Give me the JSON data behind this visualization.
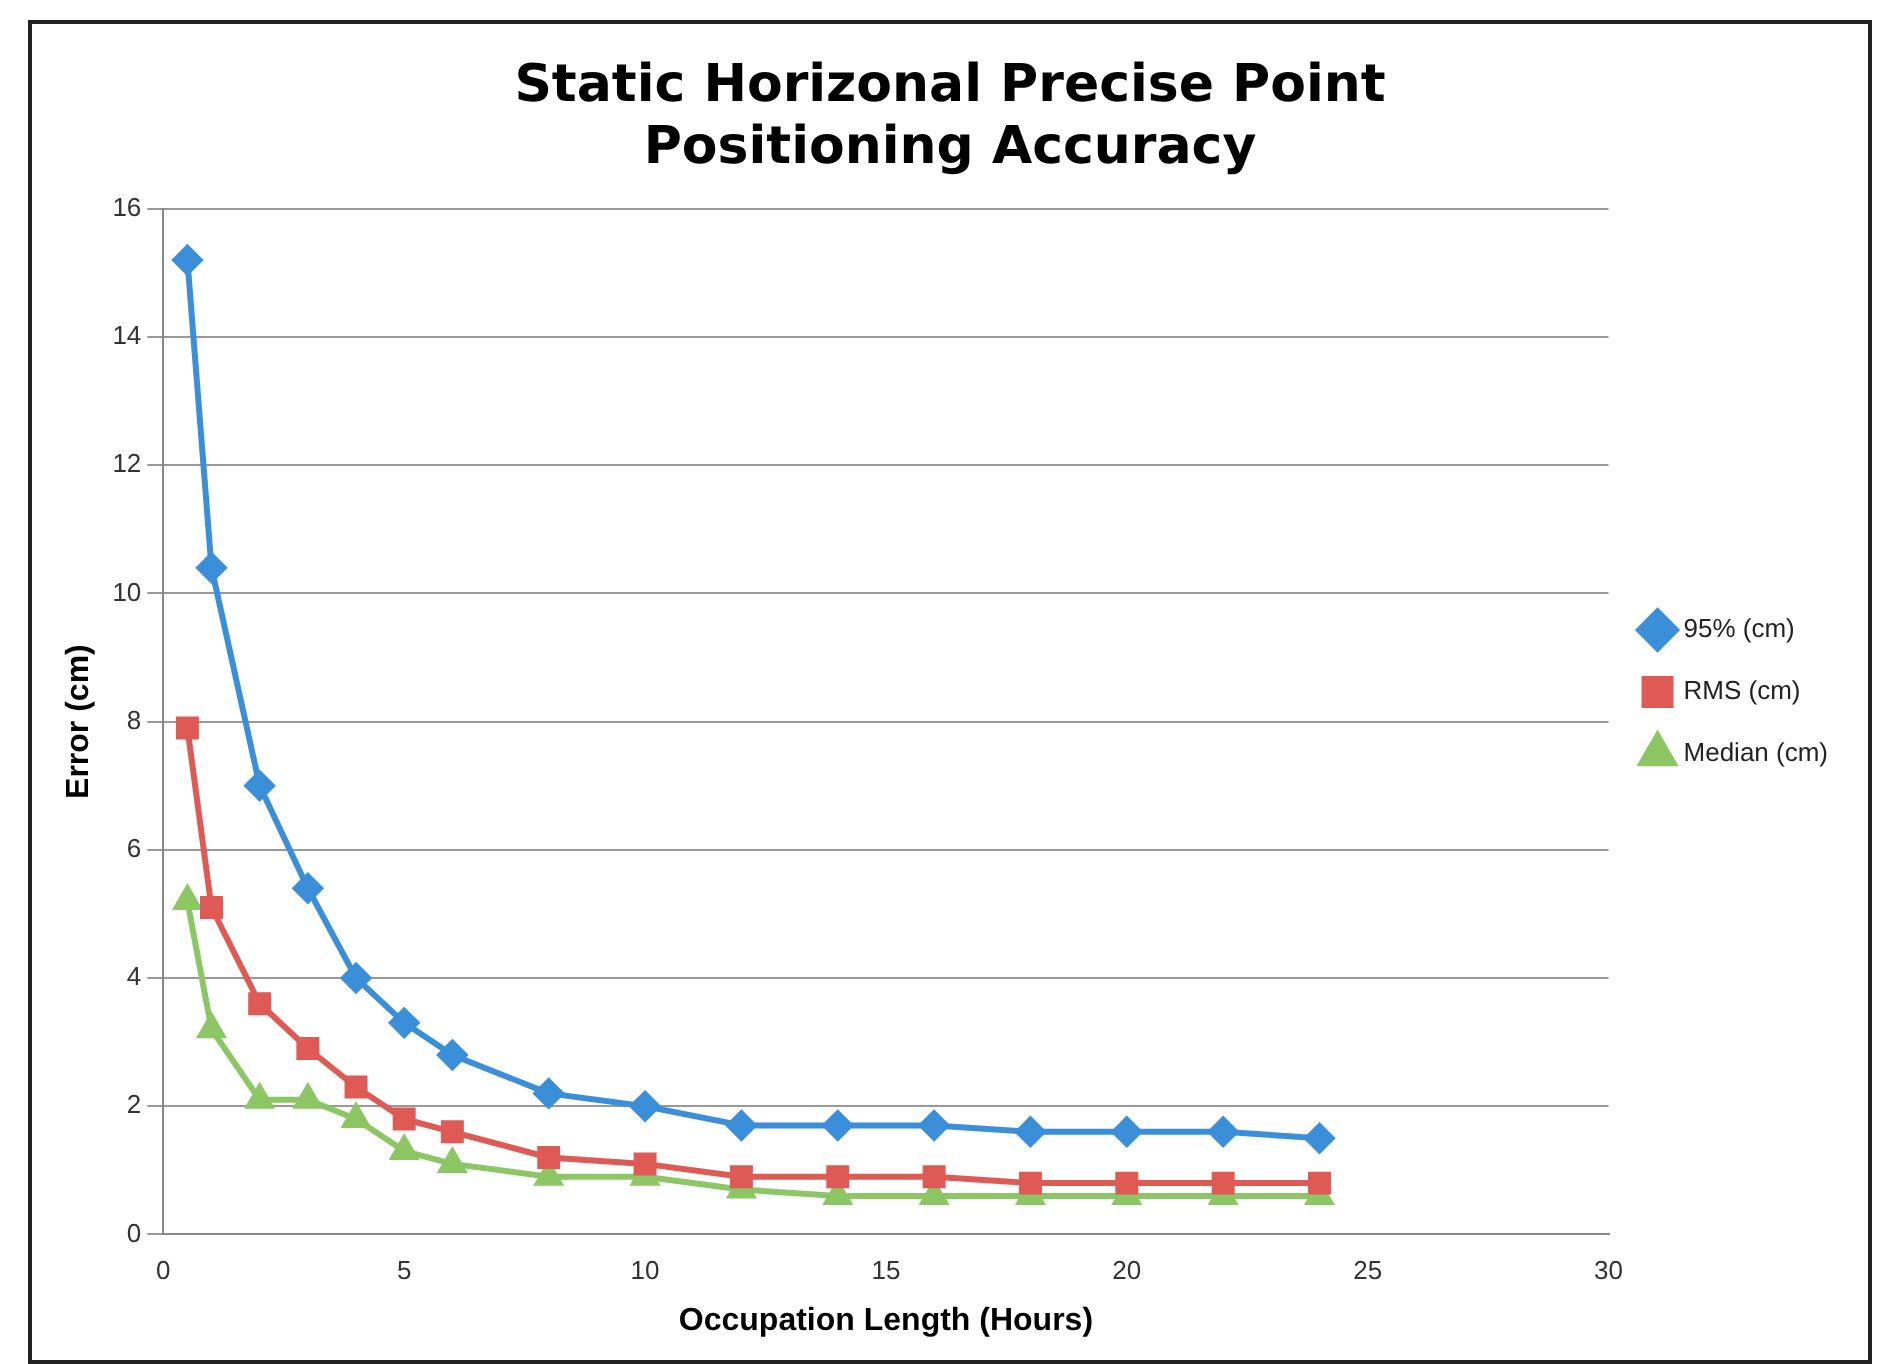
{
  "chart_data": {
    "type": "line",
    "title": "Static Horizonal Precise Point Positioning Accuracy",
    "xlabel": "Occupation Length (Hours)",
    "ylabel": "Error (cm)",
    "x": [
      0.5,
      1,
      2,
      3,
      4,
      5,
      6,
      8,
      10,
      12,
      14,
      16,
      18,
      20,
      22,
      24
    ],
    "series": [
      {
        "name": "95% (cm)",
        "color": "#3a8fd8",
        "marker": "diamond",
        "values": [
          15.2,
          10.4,
          7.0,
          5.4,
          4.0,
          3.3,
          2.8,
          2.2,
          2.0,
          1.7,
          1.7,
          1.7,
          1.6,
          1.6,
          1.6,
          1.5
        ]
      },
      {
        "name": "RMS (cm)",
        "color": "#e05a55",
        "marker": "square",
        "values": [
          7.9,
          5.1,
          3.6,
          2.9,
          2.3,
          1.8,
          1.6,
          1.2,
          1.1,
          0.9,
          0.9,
          0.9,
          0.8,
          0.8,
          0.8,
          0.8
        ]
      },
      {
        "name": "Median (cm)",
        "color": "#8dc665",
        "marker": "triangle",
        "values": [
          5.2,
          3.2,
          2.1,
          2.1,
          1.8,
          1.3,
          1.1,
          0.9,
          0.9,
          0.7,
          0.6,
          0.6,
          0.6,
          0.6,
          0.6,
          0.6
        ]
      }
    ],
    "xlim": [
      0,
      30
    ],
    "xticks": [
      0,
      5,
      10,
      15,
      20,
      25,
      30
    ],
    "ylim": [
      0,
      16
    ],
    "yticks": [
      0,
      2,
      4,
      6,
      8,
      10,
      12,
      14,
      16
    ],
    "grid": "y",
    "legend": "right",
    "line_style": "solid"
  }
}
